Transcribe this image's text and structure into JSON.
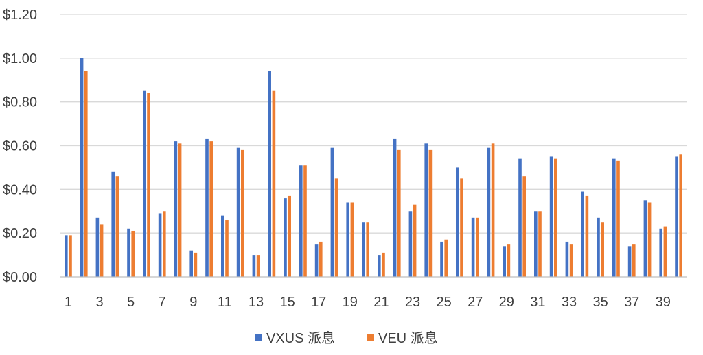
{
  "chart_data": {
    "type": "bar",
    "title": "",
    "xlabel": "",
    "ylabel": "",
    "ylim": [
      0,
      1.2
    ],
    "y_ticks": [
      0,
      0.2,
      0.4,
      0.6,
      0.8,
      1.0,
      1.2
    ],
    "y_tick_labels": [
      "$0.00",
      "$0.20",
      "$0.40",
      "$0.60",
      "$0.80",
      "$1.00",
      "$1.20"
    ],
    "categories": [
      1,
      2,
      3,
      4,
      5,
      6,
      7,
      8,
      9,
      10,
      11,
      12,
      13,
      14,
      15,
      16,
      17,
      18,
      19,
      20,
      21,
      22,
      23,
      24,
      25,
      26,
      27,
      28,
      29,
      30,
      31,
      32,
      33,
      34,
      35,
      36,
      37,
      38,
      39,
      40
    ],
    "x_tick_labels_shown": [
      "1",
      "3",
      "5",
      "7",
      "9",
      "11",
      "13",
      "15",
      "17",
      "19",
      "21",
      "23",
      "25",
      "27",
      "29",
      "31",
      "33",
      "35",
      "37",
      "39"
    ],
    "grid": true,
    "legend_position": "bottom",
    "series": [
      {
        "name": "VXUS 派息",
        "color": "#4472C4",
        "values": [
          0.19,
          1.0,
          0.27,
          0.48,
          0.22,
          0.85,
          0.29,
          0.62,
          0.12,
          0.63,
          0.28,
          0.59,
          0.1,
          0.94,
          0.36,
          0.51,
          0.15,
          0.59,
          0.34,
          0.25,
          0.1,
          0.63,
          0.3,
          0.61,
          0.16,
          0.5,
          0.27,
          0.59,
          0.14,
          0.54,
          0.3,
          0.55,
          0.16,
          0.39,
          0.27,
          0.54,
          0.14,
          0.35,
          0.22,
          0.55
        ]
      },
      {
        "name": "VEU 派息",
        "color": "#ED7D31",
        "values": [
          0.19,
          0.94,
          0.24,
          0.46,
          0.21,
          0.84,
          0.3,
          0.61,
          0.11,
          0.62,
          0.26,
          0.58,
          0.1,
          0.85,
          0.37,
          0.51,
          0.16,
          0.45,
          0.34,
          0.25,
          0.11,
          0.58,
          0.33,
          0.58,
          0.17,
          0.45,
          0.27,
          0.61,
          0.15,
          0.46,
          0.3,
          0.54,
          0.15,
          0.37,
          0.25,
          0.53,
          0.15,
          0.34,
          0.23,
          0.56
        ]
      }
    ]
  }
}
